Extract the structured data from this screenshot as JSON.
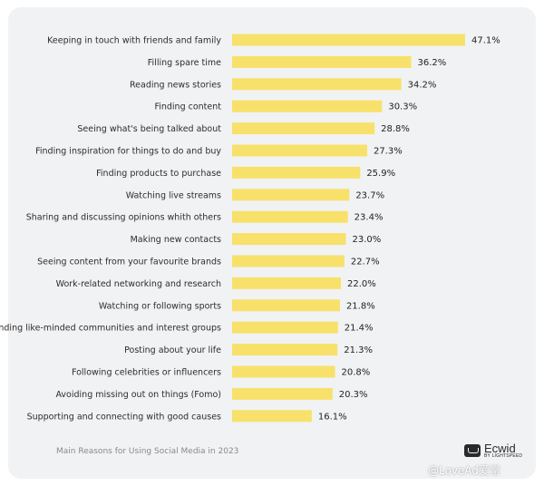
{
  "chart_data": {
    "type": "bar",
    "orientation": "horizontal",
    "bar_color": "#f7e16b",
    "categories": [
      "Keeping in touch with friends and family",
      "Filling spare time",
      "Reading news stories",
      "Finding content",
      "Seeing what's being talked about",
      "Finding inspiration for things to do and buy",
      "Finding products to purchase",
      "Watching live streams",
      "Sharing and discussing opinions whith others",
      "Making new contacts",
      "Seeing content from your favourite brands",
      "Work-related networking and research",
      "Watching or following sports",
      "Finding like-minded communities and interest groups",
      "Posting about your life",
      "Following celebrities or influencers",
      "Avoiding missing out on things (Fomo)",
      "Supporting and connecting with good causes"
    ],
    "values": [
      47.1,
      36.2,
      34.2,
      30.3,
      28.8,
      27.3,
      25.9,
      23.7,
      23.4,
      23.0,
      22.7,
      22.0,
      21.8,
      21.4,
      21.3,
      20.8,
      20.3,
      16.1
    ],
    "value_labels": [
      "47.1%",
      "36.2%",
      "34.2%",
      "30.3%",
      "28.8%",
      "27.3%",
      "25.9%",
      "23.7%",
      "23.4%",
      "23.0%",
      "22.7%",
      "22.0%",
      "21.8%",
      "21.4%",
      "21.3%",
      "20.8%",
      "20.3%",
      "16.1%"
    ],
    "grid": false,
    "legend": "none"
  },
  "caption": "Main Reasons for Using Social Media in 2023",
  "brand": {
    "name": "Ecwid",
    "sub": "BY LIGHTSPEED"
  },
  "watermark": "@LoveAd爱常"
}
